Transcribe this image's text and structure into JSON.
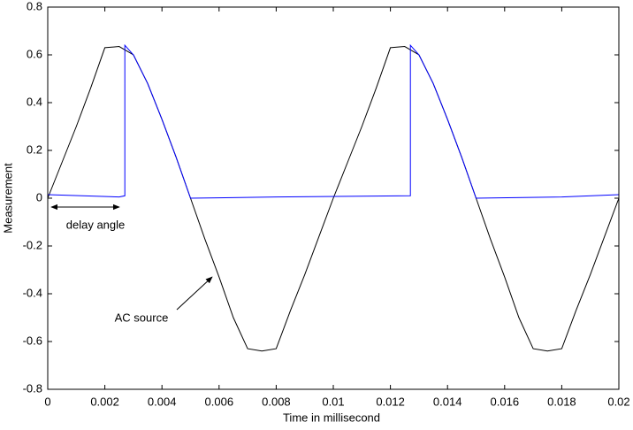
{
  "chart_data": {
    "type": "line",
    "xlabel": "Time in millisecond",
    "ylabel": "Measurement",
    "xlim": [
      0,
      0.02
    ],
    "ylim": [
      -0.8,
      0.8
    ],
    "xticks": [
      0,
      0.002,
      0.004,
      0.006,
      0.008,
      0.01,
      0.012,
      0.014,
      0.016,
      0.018,
      0.02
    ],
    "yticks": [
      -0.8,
      -0.6,
      -0.4,
      -0.2,
      0,
      0.2,
      0.4,
      0.6,
      0.8
    ],
    "grid": false,
    "series": [
      {
        "color": "#000000",
        "x": [
          0,
          0.0005,
          0.001,
          0.0015,
          0.002,
          0.0025,
          0.003,
          0.0035,
          0.004,
          0.0045,
          0.005,
          0.0055,
          0.006,
          0.0065,
          0.007,
          0.0075,
          0.008,
          0.0085,
          0.009,
          0.0095,
          0.01,
          0.0105,
          0.011,
          0.0115,
          0.012,
          0.0125,
          0.013,
          0.0135,
          0.014,
          0.0145,
          0.015,
          0.0155,
          0.016,
          0.0165,
          0.017,
          0.0175,
          0.018,
          0.0185,
          0.019,
          0.0195,
          0.02
        ],
        "values": [
          0,
          0.15,
          0.3,
          0.46,
          0.63,
          0.635,
          0.6,
          0.48,
          0.33,
          0.17,
          0,
          -0.17,
          -0.33,
          -0.5,
          -0.63,
          -0.64,
          -0.63,
          -0.47,
          -0.32,
          -0.16,
          0,
          0.15,
          0.3,
          0.46,
          0.63,
          0.635,
          0.6,
          0.48,
          0.33,
          0.17,
          0,
          -0.17,
          -0.33,
          -0.5,
          -0.63,
          -0.64,
          -0.63,
          -0.47,
          -0.32,
          -0.16,
          0
        ]
      },
      {
        "color": "#0000ff",
        "x": [
          0,
          0.0025,
          0.0027,
          0.0027,
          0.003,
          0.0035,
          0.004,
          0.0045,
          0.005,
          0.008,
          0.0127,
          0.0127,
          0.013,
          0.0135,
          0.014,
          0.0145,
          0.015,
          0.018,
          0.02
        ],
        "values": [
          0.015,
          0.005,
          0.01,
          0.64,
          0.6,
          0.48,
          0.33,
          0.17,
          0,
          0.005,
          0.01,
          0.64,
          0.6,
          0.48,
          0.33,
          0.17,
          0,
          0.005,
          0.015
        ]
      }
    ],
    "annotations": [
      {
        "text": "delay angle"
      },
      {
        "text": "AC source"
      }
    ]
  }
}
